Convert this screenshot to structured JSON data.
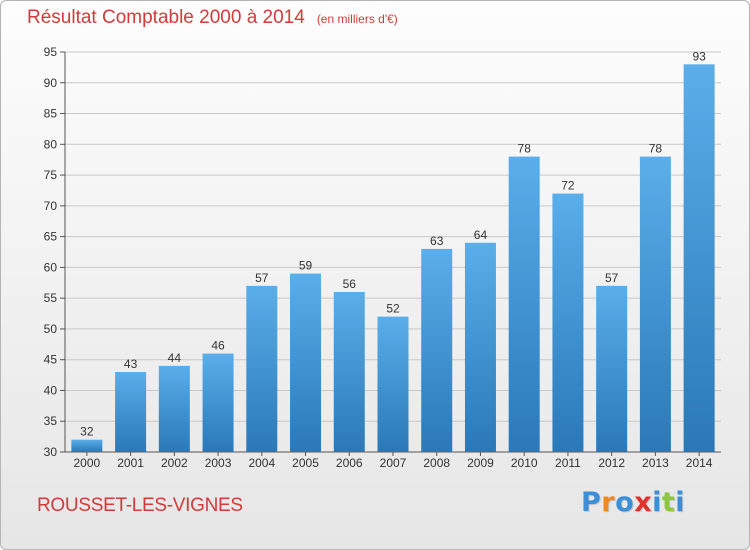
{
  "page": {
    "subtitle": "(en milliers d'€)",
    "commune": "ROUSSET-LES-VIGNES",
    "logo": {
      "text": "Proxiti",
      "letter_colors": [
        "#3c8fd6",
        "#f08a1c",
        "#3c8fd6",
        "#e0322d",
        "#3c8fd6",
        "#8dc63f",
        "#3c8fd6"
      ]
    }
  },
  "chart_data": {
    "type": "bar",
    "title": "Résultat Comptable 2000 à 2014",
    "xlabel": "",
    "ylabel": "",
    "categories": [
      "2000",
      "2001",
      "2002",
      "2003",
      "2004",
      "2005",
      "2006",
      "2007",
      "2008",
      "2009",
      "2010",
      "2011",
      "2012",
      "2013",
      "2014"
    ],
    "values": [
      32,
      43,
      44,
      46,
      57,
      59,
      56,
      52,
      63,
      64,
      78,
      72,
      57,
      78,
      93
    ],
    "ylim": [
      30,
      95
    ],
    "yticks": [
      30,
      35,
      40,
      45,
      50,
      55,
      60,
      65,
      70,
      75,
      80,
      85,
      90,
      95
    ],
    "grid": true,
    "colors": {
      "bar_top": "#5aaeea",
      "bar_bottom": "#2a78b8",
      "grid": "#c8c8c8",
      "text": "#333333"
    }
  }
}
